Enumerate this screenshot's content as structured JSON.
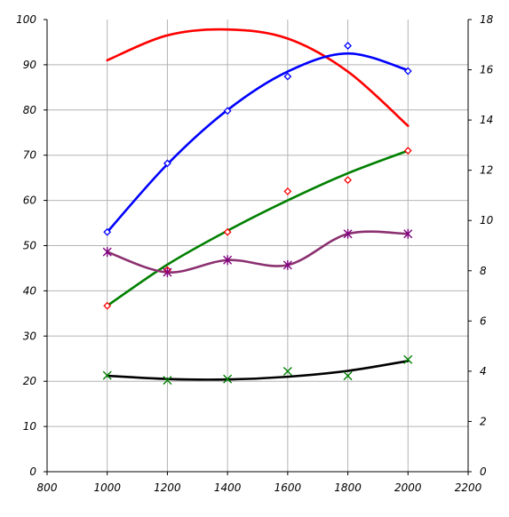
{
  "chart_data": {
    "type": "line",
    "x_ticks": [
      800,
      1000,
      1200,
      1400,
      1600,
      1800,
      2000,
      2200
    ],
    "xlim": [
      800,
      2200
    ],
    "ylim_left": [
      0,
      100
    ],
    "y_ticks_left": [
      0,
      10,
      20,
      30,
      40,
      50,
      60,
      70,
      80,
      90,
      100
    ],
    "ylim_right": [
      0,
      18
    ],
    "y_ticks_right": [
      0,
      2,
      4,
      6,
      8,
      10,
      12,
      14,
      16,
      18
    ],
    "grid": true,
    "series": [
      {
        "color": "#ff0000",
        "axis": "left",
        "marker": "none",
        "x": [
          1000,
          1200,
          1400,
          1600,
          1800,
          2000
        ],
        "y": [
          91,
          96.5,
          97.8,
          95.8,
          88.5,
          76.5
        ]
      },
      {
        "color": "#0000ff",
        "axis": "left",
        "marker": "diamond",
        "x": [
          1000,
          1200,
          1400,
          1600,
          1800,
          2000
        ],
        "y": [
          53,
          68,
          80,
          88.5,
          92.5,
          88.8
        ],
        "points": [
          53,
          68.2,
          79.8,
          87.4,
          94.2,
          88.6
        ]
      },
      {
        "color": "#008000",
        "axis": "left",
        "marker": "diamond",
        "marker_color": "#ff0000",
        "x": [
          1000,
          1200,
          1400,
          1600,
          1800,
          2000
        ],
        "y": [
          36.7,
          45.8,
          53.3,
          60,
          66,
          71
        ],
        "points": [
          36.7,
          44.6,
          53,
          62,
          64.5,
          71
        ]
      },
      {
        "color": "#8b3070",
        "axis": "left",
        "marker": "asterisk",
        "marker_color": "#800080",
        "x": [
          1000,
          1200,
          1400,
          1600,
          1800,
          2000
        ],
        "y": [
          48.6,
          44.1,
          46.8,
          45.7,
          52.6,
          52.6
        ],
        "points": [
          48.6,
          44.1,
          46.8,
          45.7,
          52.6,
          52.6
        ]
      },
      {
        "color": "#000000",
        "axis": "left",
        "marker": "x",
        "marker_color": "#008000",
        "x": [
          1000,
          1200,
          1400,
          1600,
          1800,
          2000
        ],
        "y": [
          21.2,
          20.5,
          20.4,
          21,
          22.3,
          24.5
        ],
        "points": [
          21.3,
          20.2,
          20.5,
          22.2,
          21.2,
          24.8
        ]
      }
    ]
  }
}
